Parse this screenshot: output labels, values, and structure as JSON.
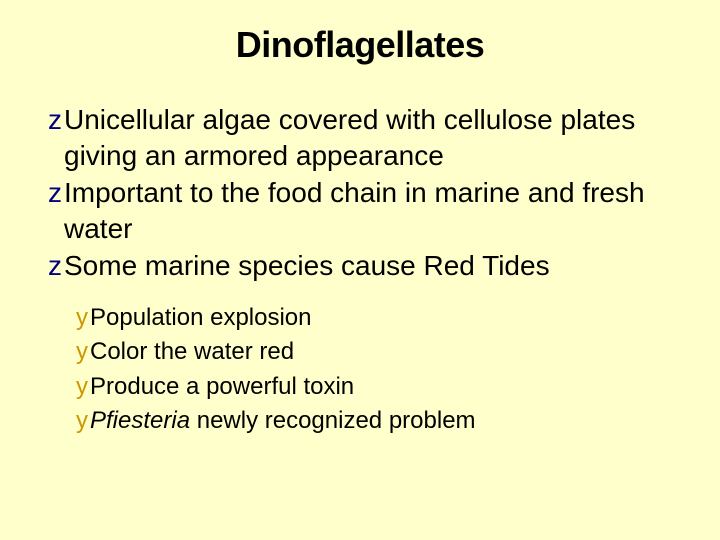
{
  "background_color": "#ffffcc",
  "text_color": "#000000",
  "title": {
    "text": "Dinoflagellates",
    "fontsize": 36,
    "font_weight": "bold",
    "align": "center"
  },
  "main_bullets": {
    "dingbat": "z",
    "dingbat_color": "#000080",
    "fontsize": 28,
    "items": [
      "Unicellular algae covered with cellulose plates giving an armored appearance",
      "Important to the food chain in marine and fresh water",
      "Some marine species cause Red Tides"
    ]
  },
  "sub_bullets": {
    "dingbat": "y",
    "dingbat_color": "#cc9900",
    "fontsize": 24,
    "items": [
      {
        "text": "Population explosion"
      },
      {
        "text": "Color the water red"
      },
      {
        "text": "Produce a powerful toxin"
      },
      {
        "italic_lead": "Pfiesteria",
        "rest": " newly recognized problem"
      }
    ]
  }
}
